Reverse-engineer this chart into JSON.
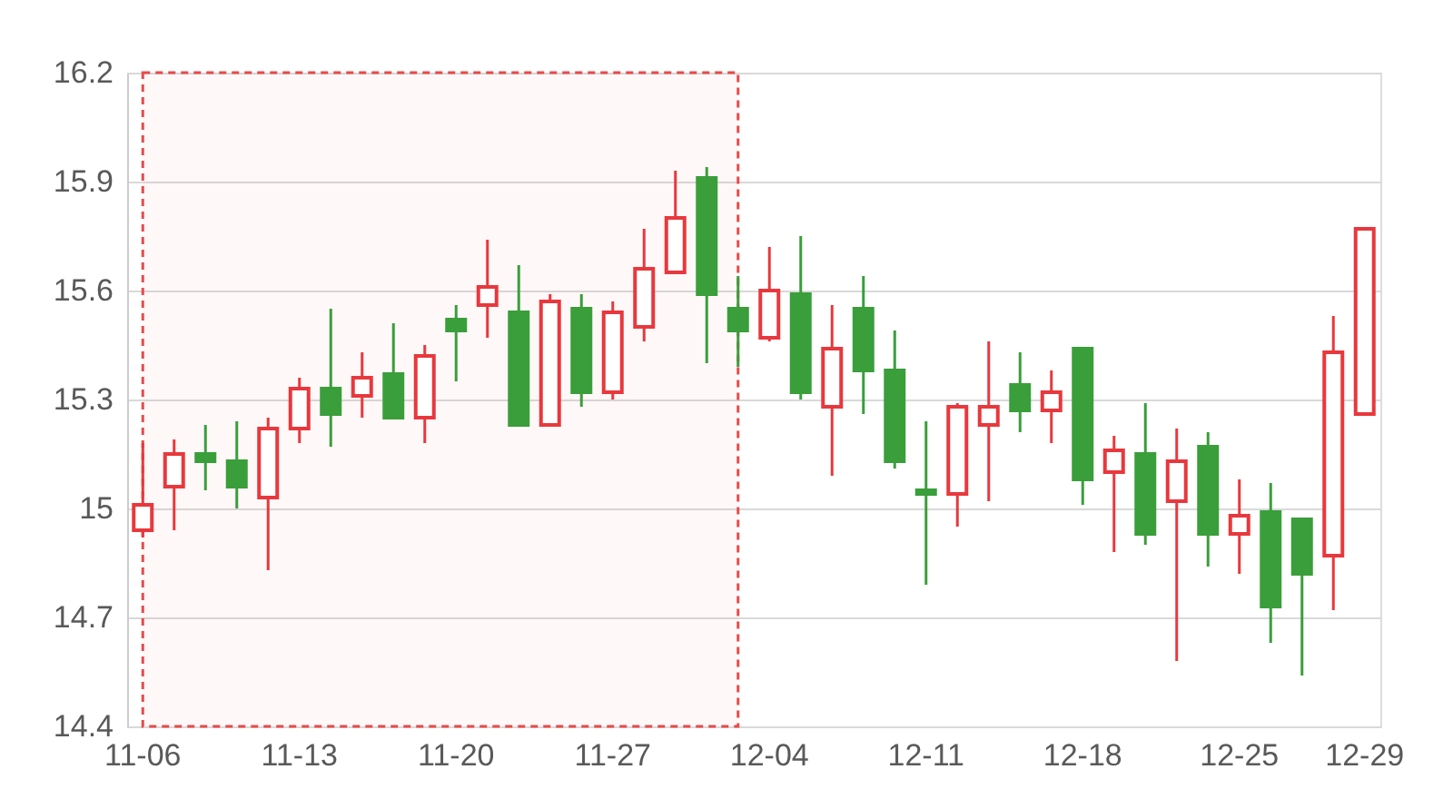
{
  "chart_data": {
    "type": "candlestick",
    "categories": [
      "11-06",
      null,
      null,
      null,
      null,
      "11-13",
      null,
      null,
      null,
      null,
      "11-20",
      null,
      null,
      null,
      null,
      "11-27",
      null,
      null,
      null,
      null,
      "12-04",
      null,
      null,
      null,
      null,
      "12-11",
      null,
      null,
      null,
      null,
      "12-18",
      null,
      null,
      null,
      null,
      "12-25",
      null,
      null,
      null,
      "12-29"
    ],
    "ohlc": [
      [
        14.94,
        15.18,
        14.92,
        15.01
      ],
      [
        15.06,
        15.19,
        14.94,
        15.15
      ],
      [
        15.15,
        15.23,
        15.05,
        15.13
      ],
      [
        15.13,
        15.24,
        15.0,
        15.06
      ],
      [
        15.03,
        15.25,
        14.83,
        15.22
      ],
      [
        15.22,
        15.36,
        15.18,
        15.33
      ],
      [
        15.33,
        15.55,
        15.17,
        15.26
      ],
      [
        15.31,
        15.43,
        15.25,
        15.36
      ],
      [
        15.37,
        15.51,
        15.25,
        15.25
      ],
      [
        15.25,
        15.45,
        15.18,
        15.42
      ],
      [
        15.52,
        15.56,
        15.35,
        15.49
      ],
      [
        15.56,
        15.74,
        15.47,
        15.61
      ],
      [
        15.54,
        15.67,
        15.23,
        15.23
      ],
      [
        15.23,
        15.59,
        15.23,
        15.57
      ],
      [
        15.55,
        15.59,
        15.28,
        15.32
      ],
      [
        15.32,
        15.57,
        15.3,
        15.54
      ],
      [
        15.5,
        15.77,
        15.46,
        15.66
      ],
      [
        15.65,
        15.93,
        15.65,
        15.8
      ],
      [
        15.91,
        15.94,
        15.4,
        15.59
      ],
      [
        15.55,
        15.64,
        15.39,
        15.49
      ],
      [
        15.47,
        15.72,
        15.46,
        15.6
      ],
      [
        15.59,
        15.75,
        15.3,
        15.32
      ],
      [
        15.28,
        15.56,
        15.09,
        15.44
      ],
      [
        15.55,
        15.64,
        15.26,
        15.38
      ],
      [
        15.38,
        15.49,
        15.11,
        15.13
      ],
      [
        15.05,
        15.24,
        14.79,
        15.04
      ],
      [
        15.04,
        15.29,
        14.95,
        15.28
      ],
      [
        15.23,
        15.46,
        15.02,
        15.28
      ],
      [
        15.34,
        15.43,
        15.21,
        15.27
      ],
      [
        15.27,
        15.38,
        15.18,
        15.32
      ],
      [
        15.44,
        15.44,
        15.01,
        15.08
      ],
      [
        15.1,
        15.2,
        14.88,
        15.16
      ],
      [
        15.15,
        15.29,
        14.9,
        14.93
      ],
      [
        15.02,
        15.22,
        14.58,
        15.13
      ],
      [
        15.17,
        15.21,
        14.84,
        14.93
      ],
      [
        14.93,
        15.08,
        14.82,
        14.98
      ],
      [
        14.99,
        15.07,
        14.63,
        14.73
      ],
      [
        14.97,
        14.97,
        14.54,
        14.82
      ],
      [
        14.87,
        15.53,
        14.72,
        15.43
      ],
      [
        15.26,
        15.77,
        15.26,
        15.77
      ]
    ],
    "colors": [
      "#e8383d",
      "#e8383d",
      "#3a9e3a",
      "#3a9e3a",
      "#e8383d",
      "#e8383d",
      "#3a9e3a",
      "#e8383d",
      "#3a9e3a",
      "#e8383d",
      "#3a9e3a",
      "#e8383d",
      "#3a9e3a",
      "#e8383d",
      "#3a9e3a",
      "#e8383d",
      "#e8383d",
      "#e8383d",
      "#3a9e3a",
      "#3a9e3a",
      "#e8383d",
      "#3a9e3a",
      "#e8383d",
      "#3a9e3a",
      "#3a9e3a",
      "#3a9e3a",
      "#e8383d",
      "#e8383d",
      "#3a9e3a",
      "#e8383d",
      "#3a9e3a",
      "#e8383d",
      "#3a9e3a",
      "#e8383d",
      "#3a9e3a",
      "#e8383d",
      "#3a9e3a",
      "#3a9e3a",
      "#e8383d",
      "#e8383d"
    ],
    "ylim": [
      14.4,
      16.2
    ],
    "yticks": [
      14.4,
      14.7,
      15,
      15.3,
      15.6,
      15.9,
      16.2
    ],
    "grid": "y"
  }
}
